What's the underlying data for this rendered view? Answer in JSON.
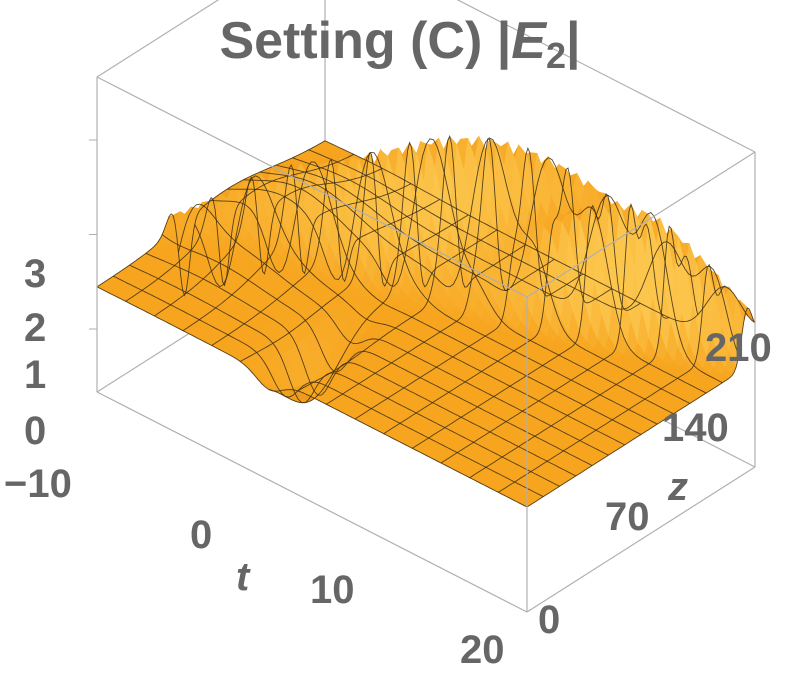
{
  "chart_data": {
    "type": "surface",
    "title": {
      "prefix": "Setting (C) |",
      "variable": "E",
      "subscript": "2",
      "suffix": "|"
    },
    "xlabel": "t",
    "ylabel": "z",
    "zlabel": "",
    "xlim": [
      -10,
      20
    ],
    "ylim": [
      0,
      210
    ],
    "zlim": [
      0,
      3
    ],
    "x_ticks": [
      "−10",
      "0",
      "10",
      "20"
    ],
    "y_ticks": [
      "0",
      "70",
      "140",
      "210"
    ],
    "z_ticks": [
      "0",
      "1",
      "2",
      "3"
    ],
    "grid_t": [
      -10,
      -8,
      -6,
      -4,
      -2,
      0,
      2,
      4,
      6,
      8,
      10,
      12,
      14,
      16,
      18,
      20
    ],
    "grid_z": [
      0,
      15,
      30,
      45,
      60,
      75,
      90,
      105,
      120,
      135,
      150,
      165,
      180,
      195,
      210
    ],
    "background_level": 1,
    "features": [
      {
        "t_center": -1.5,
        "z_center": 150,
        "peak": 2.9,
        "description": "main hump"
      },
      {
        "t_center": 2,
        "z_center": 175,
        "peak": 2.5,
        "description": "second hump"
      },
      {
        "t_center": -0.5,
        "z_center": 60,
        "min": 0.05,
        "description": "dip"
      },
      {
        "t_center": 1.5,
        "z_center": 40,
        "min": 0.1,
        "description": "dip"
      }
    ],
    "surface_color": "#f7a51f",
    "surface_color_light": "#fcc64d",
    "surface_color_dark": "#c8741a",
    "mesh_color": "#3a2b14",
    "box_color": "#b0b0b0",
    "text_color": "#666666"
  }
}
